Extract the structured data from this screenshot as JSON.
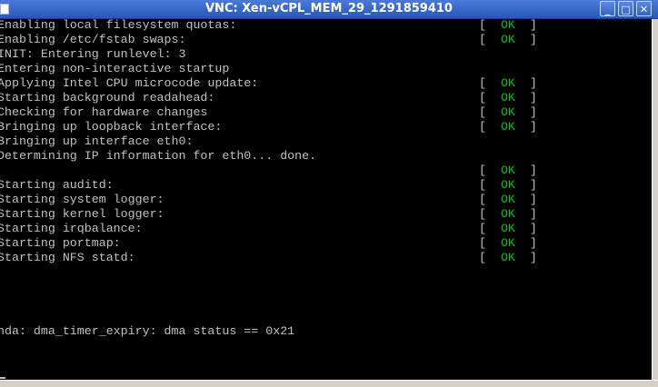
{
  "window": {
    "title": "VNC: Xen-vCPL_MEM_29_1291859410",
    "minimize_icon": "minimize-icon",
    "maximize_icon": "maximize-icon",
    "close_icon": "close-icon"
  },
  "colors": {
    "ok": "#00c000",
    "text": "#c0c0c0",
    "background": "#000000",
    "titlebar": "#2a56b8"
  },
  "console": {
    "lines": [
      {
        "text": "Enabling local filesystem quotas:",
        "status": "OK"
      },
      {
        "text": "Enabling /etc/fstab swaps:",
        "status": "OK"
      },
      {
        "text": "INIT: Entering runlevel: 3",
        "status": null
      },
      {
        "text": "Entering non-interactive startup",
        "status": null
      },
      {
        "text": "Applying Intel CPU microcode update:",
        "status": "OK"
      },
      {
        "text": "Starting background readahead:",
        "status": "OK"
      },
      {
        "text": "Checking for hardware changes",
        "status": "OK"
      },
      {
        "text": "Bringing up loopback interface:",
        "status": "OK"
      },
      {
        "text": "Bringing up interface eth0:",
        "status": null
      },
      {
        "text": "Determining IP information for eth0... done.",
        "status": null
      },
      {
        "text": "",
        "status": "OK"
      },
      {
        "text": "Starting auditd:",
        "status": "OK"
      },
      {
        "text": "Starting system logger:",
        "status": "OK"
      },
      {
        "text": "Starting kernel logger:",
        "status": "OK"
      },
      {
        "text": "Starting irqbalance:",
        "status": "OK"
      },
      {
        "text": "Starting portmap:",
        "status": "OK"
      },
      {
        "text": "Starting NFS statd:",
        "status": "OK"
      }
    ],
    "kernel_message": "nda: dma_timer_expiry: dma status == 0x21"
  }
}
